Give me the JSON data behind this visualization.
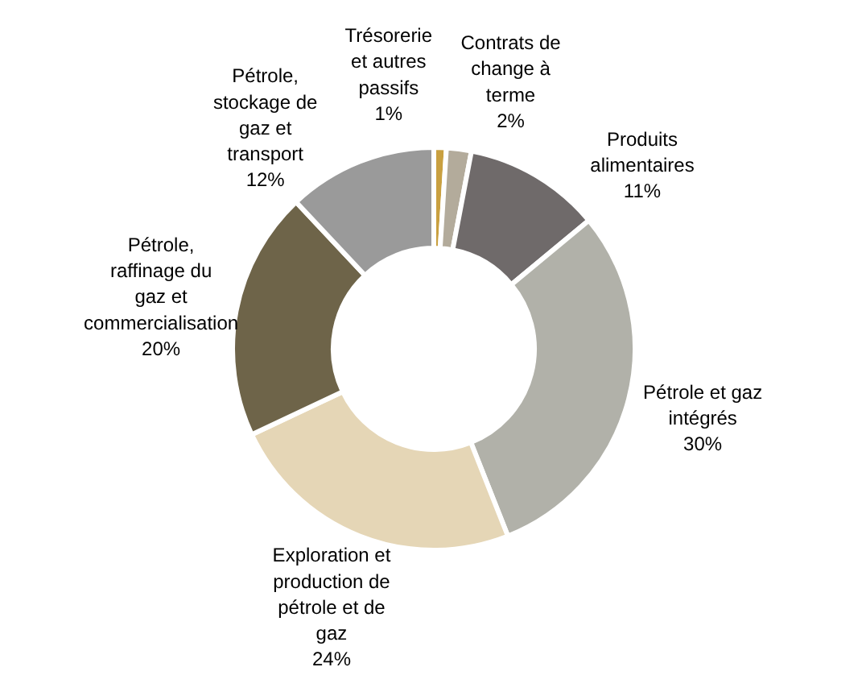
{
  "chart_data": {
    "type": "donut",
    "categories": [
      "Trésorerie et autres passifs",
      "Contrats de change à terme",
      "Produits alimentaires",
      "Pétrole et gaz intégrés",
      "Exploration et production de pétrole et de gaz",
      "Pétrole, raffinage du gaz et commercialisation",
      "Pétrole, stockage de gaz et transport"
    ],
    "values": [
      1,
      2,
      11,
      30,
      24,
      20,
      12
    ],
    "colors": [
      "#c9a040",
      "#b3ab9b",
      "#6f6a6a",
      "#b1b1a9",
      "#e5d6b6",
      "#6e6449",
      "#9a9a9a"
    ],
    "value_labels": [
      "1%",
      "2%",
      "11%",
      "30%",
      "24%",
      "20%",
      "12%"
    ]
  }
}
